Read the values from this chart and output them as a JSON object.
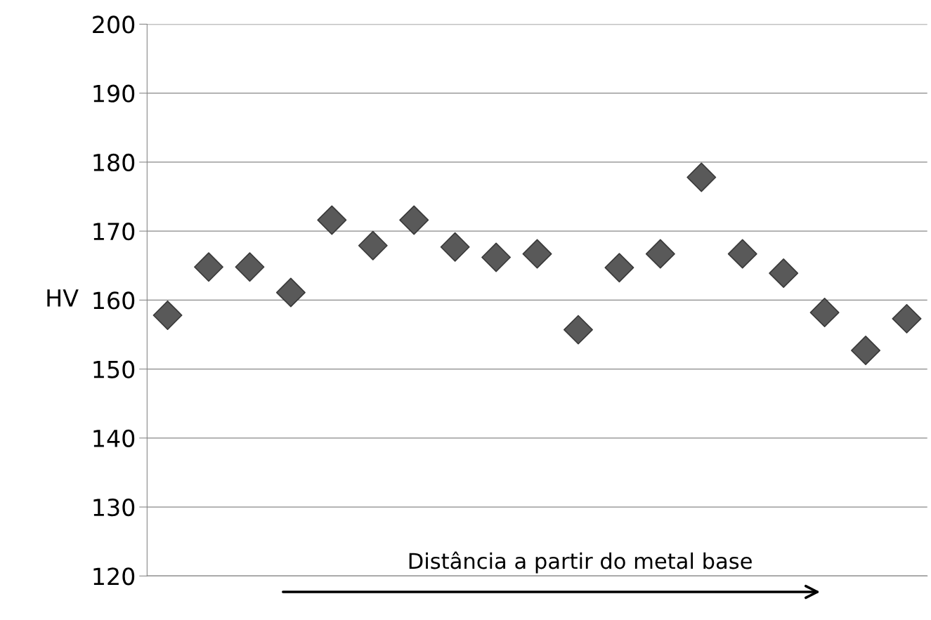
{
  "chart_data": {
    "type": "scatter",
    "ylabel": "HV",
    "xlabel": "Distância a partir do metal base",
    "categories": [
      null,
      null,
      null,
      null,
      null,
      null,
      null,
      null,
      null,
      null,
      null,
      null,
      null,
      null,
      null,
      null,
      null,
      null,
      null
    ],
    "series": [
      {
        "color": "#595959",
        "values": [
          157.8,
          164.8,
          164.8,
          161.1,
          171.6,
          167.9,
          171.6,
          167.7,
          166.2,
          166.7,
          155.7,
          164.7,
          166.7,
          177.8,
          166.7,
          163.9,
          158.2,
          152.7,
          157.3
        ]
      }
    ],
    "ylim": [
      120,
      200
    ],
    "yticks": [
      120,
      130,
      140,
      150,
      160,
      170,
      180,
      190,
      200
    ],
    "grid": "y",
    "marker": "diamond",
    "tick_labels": "y"
  }
}
